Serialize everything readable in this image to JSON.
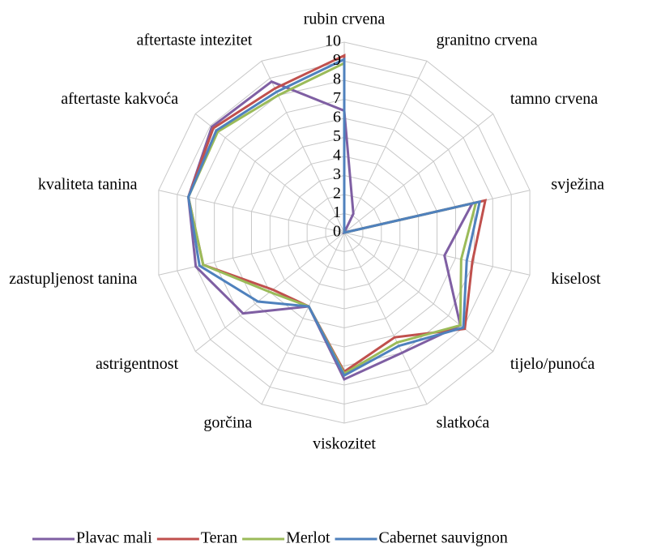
{
  "chart_data": {
    "type": "radar",
    "categories": [
      "rubin crvena",
      "granitno crvena",
      "tamno crvena",
      "svježina",
      "kiselost",
      "tijelo/punoća",
      "slatkoća",
      "viskozitet",
      "gorčina",
      "astrigentnost",
      "zastupljenost tanina",
      "kvaliteta tanina",
      "aftertaste kakvoća",
      "aftertaste intezitet"
    ],
    "rlim": [
      0,
      10
    ],
    "rticks": [
      0,
      1,
      2,
      3,
      4,
      5,
      6,
      7,
      8,
      9,
      10
    ],
    "grid": true,
    "legend": "bottom",
    "series": [
      {
        "name": "Plavac mali",
        "color": "#7f5fa3",
        "values": [
          6.4,
          1.1,
          0,
          6.9,
          5.4,
          7.8,
          7.0,
          7.7,
          4.3,
          6.8,
          8.0,
          8.4,
          8.9,
          8.8
        ]
      },
      {
        "name": "Teran",
        "color": "#c0504d",
        "values": [
          9.3,
          0,
          0,
          7.6,
          6.9,
          8.1,
          6.1,
          7.3,
          4.3,
          4.8,
          7.6,
          8.4,
          8.8,
          8.4
        ]
      },
      {
        "name": "Merlot",
        "color": "#9bbb59",
        "values": [
          8.9,
          0,
          0,
          7.1,
          6.3,
          7.8,
          6.4,
          7.4,
          4.3,
          5.0,
          7.6,
          8.4,
          8.5,
          8.0
        ]
      },
      {
        "name": "Cabernet sauvignon",
        "color": "#4f81bd",
        "values": [
          9.1,
          0,
          0,
          7.3,
          6.6,
          8.0,
          6.6,
          7.5,
          4.3,
          5.8,
          7.8,
          8.4,
          8.6,
          8.2
        ]
      }
    ]
  }
}
